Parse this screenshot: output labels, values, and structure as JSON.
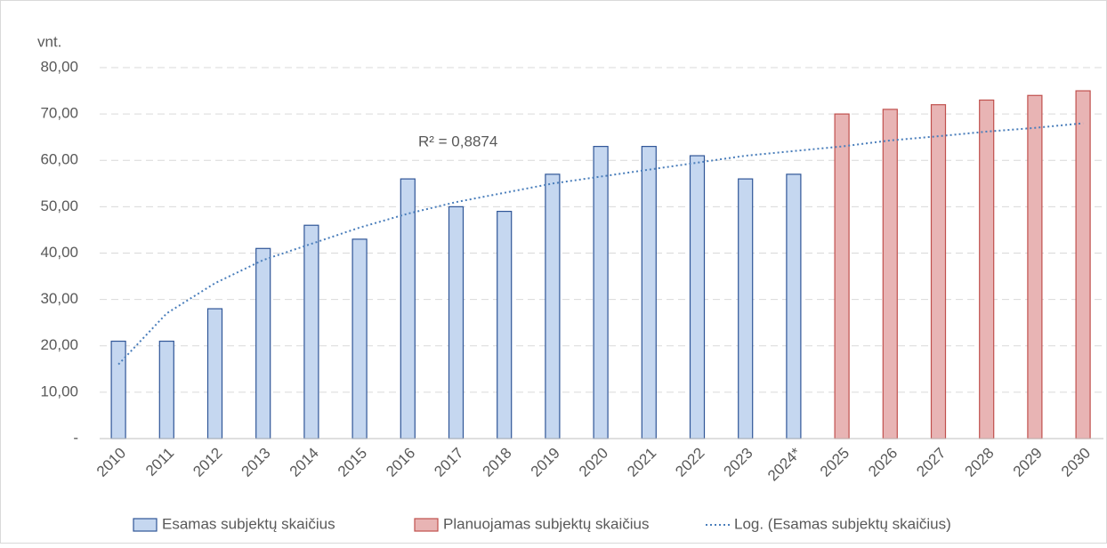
{
  "chart_data": {
    "type": "bar",
    "y_label": "vnt.",
    "annotation": "R² = 0,8874",
    "categories": [
      "2010",
      "2011",
      "2012",
      "2013",
      "2014",
      "2015",
      "2016",
      "2017",
      "2018",
      "2019",
      "2020",
      "2021",
      "2022",
      "2023",
      "2024*",
      "2025",
      "2026",
      "2027",
      "2028",
      "2029",
      "2030"
    ],
    "series": [
      {
        "name": "Esamas subjektų skaičius",
        "color": "#c5d7f0",
        "edge": "#2f5597",
        "values": [
          21,
          21,
          28,
          41,
          46,
          43,
          56,
          50,
          49,
          57,
          63,
          63,
          61,
          56,
          57,
          null,
          null,
          null,
          null,
          null,
          null
        ]
      },
      {
        "name": "Planuojamas subjektų skaičius",
        "color": "#e8b4b4",
        "edge": "#c0504d",
        "values": [
          null,
          null,
          null,
          null,
          null,
          null,
          null,
          null,
          null,
          null,
          null,
          null,
          null,
          null,
          null,
          70,
          71,
          72,
          73,
          74,
          75
        ]
      },
      {
        "name": "Log. (Esamas subjektų skaičius)",
        "color": "#4a7ebb",
        "kind": "trendline",
        "values": [
          16,
          27,
          33.5,
          38.5,
          42,
          45.5,
          48.5,
          51,
          53,
          55,
          56.5,
          58,
          59.5,
          61,
          62,
          63,
          64.3,
          65.2,
          66.2,
          67,
          68
        ]
      }
    ],
    "ylim": [
      0,
      80
    ],
    "yticks": [
      {
        "value": 0,
        "label": "-"
      },
      {
        "value": 10,
        "label": "10,00"
      },
      {
        "value": 20,
        "label": "20,00"
      },
      {
        "value": 30,
        "label": "30,00"
      },
      {
        "value": 40,
        "label": "40,00"
      },
      {
        "value": 50,
        "label": "50,00"
      },
      {
        "value": 60,
        "label": "60,00"
      },
      {
        "value": 70,
        "label": "70,00"
      },
      {
        "value": 80,
        "label": "80,00"
      }
    ],
    "grid": true
  }
}
